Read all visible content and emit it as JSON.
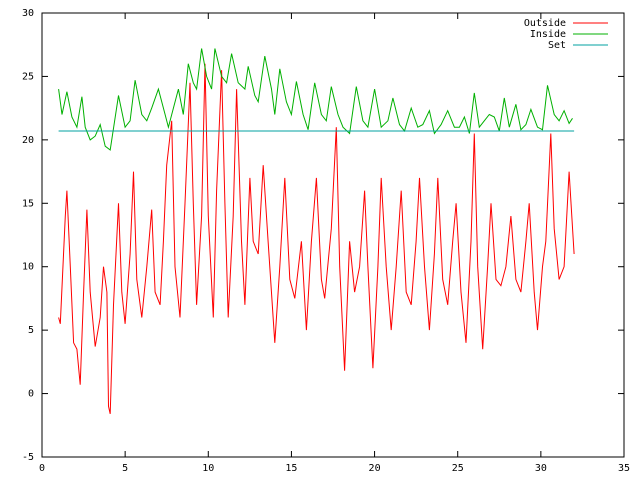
{
  "chart_data": {
    "type": "line",
    "xlim": [
      0,
      35
    ],
    "xticks": [
      0,
      5,
      10,
      15,
      20,
      25,
      30,
      35
    ],
    "ylim": [
      -5,
      30
    ],
    "yticks": [
      -5,
      0,
      5,
      10,
      15,
      20,
      25,
      30
    ],
    "series": [
      {
        "name": "Outside",
        "color": "#ff0000",
        "x": [
          1.0,
          1.1,
          1.4,
          1.5,
          1.7,
          1.9,
          2.1,
          2.3,
          2.5,
          2.7,
          2.9,
          3.2,
          3.5,
          3.7,
          3.9,
          4.0,
          4.1,
          4.3,
          4.6,
          4.8,
          5.0,
          5.3,
          5.5,
          5.7,
          6.0,
          6.3,
          6.6,
          6.8,
          7.1,
          7.3,
          7.5,
          7.8,
          8.0,
          8.3,
          8.6,
          8.9,
          9.1,
          9.3,
          9.6,
          9.8,
          10.0,
          10.3,
          10.5,
          10.8,
          11.0,
          11.2,
          11.5,
          11.7,
          12.0,
          12.2,
          12.5,
          12.7,
          13.0,
          13.3,
          13.6,
          14.0,
          14.3,
          14.6,
          14.9,
          15.2,
          15.6,
          15.9,
          16.2,
          16.5,
          16.8,
          17.0,
          17.4,
          17.7,
          17.9,
          18.2,
          18.5,
          18.8,
          19.1,
          19.4,
          19.6,
          19.9,
          20.2,
          20.4,
          20.7,
          21.0,
          21.3,
          21.6,
          21.9,
          22.2,
          22.5,
          22.7,
          23.0,
          23.3,
          23.6,
          23.8,
          24.1,
          24.4,
          24.7,
          24.9,
          25.2,
          25.5,
          25.8,
          26.0,
          26.2,
          26.5,
          26.8,
          27.0,
          27.3,
          27.6,
          27.9,
          28.2,
          28.5,
          28.8,
          29.1,
          29.3,
          29.6,
          29.8,
          30.1,
          30.3,
          30.6,
          30.8,
          31.1,
          31.4,
          31.7,
          32.0
        ],
        "values": [
          6,
          5.5,
          14,
          16,
          10,
          4,
          3.5,
          0.7,
          8,
          14.5,
          8,
          3.7,
          6,
          10,
          8,
          -1,
          -1.6,
          7,
          15,
          8,
          5.5,
          11,
          17.5,
          9,
          6,
          10,
          14.5,
          8,
          7,
          12,
          18,
          21.5,
          10,
          6,
          15,
          24.5,
          15,
          7,
          14,
          26,
          14,
          6,
          16,
          25.5,
          15,
          6,
          14,
          24,
          12,
          7,
          17,
          12,
          11,
          18,
          12,
          4,
          10,
          17,
          9,
          7.5,
          12,
          5,
          12,
          17,
          9,
          7.5,
          13,
          21,
          10,
          1.8,
          12,
          8,
          10,
          16,
          10,
          2,
          10,
          17,
          10,
          5,
          10,
          16,
          8,
          7,
          12,
          17,
          10,
          5,
          11,
          17,
          9,
          7,
          12,
          15,
          8,
          4,
          12,
          20.5,
          10,
          3.5,
          10,
          15,
          9,
          8.5,
          10,
          14,
          9,
          8,
          12,
          15,
          8,
          5,
          10,
          12,
          20.5,
          13,
          9,
          10,
          17.5,
          11
        ]
      },
      {
        "name": "Inside",
        "color": "#00b000",
        "x": [
          1.0,
          1.2,
          1.5,
          1.8,
          2.1,
          2.4,
          2.6,
          2.9,
          3.2,
          3.5,
          3.8,
          4.1,
          4.6,
          5.0,
          5.3,
          5.6,
          6.0,
          6.3,
          6.6,
          7.0,
          7.4,
          7.6,
          7.9,
          8.2,
          8.5,
          8.8,
          9.1,
          9.3,
          9.6,
          9.9,
          10.2,
          10.4,
          10.8,
          11.1,
          11.4,
          11.8,
          12.2,
          12.4,
          12.8,
          13.0,
          13.4,
          13.8,
          14.0,
          14.3,
          14.7,
          15.0,
          15.3,
          15.7,
          16.0,
          16.4,
          16.8,
          17.1,
          17.4,
          17.8,
          18.1,
          18.5,
          18.9,
          19.3,
          19.6,
          20.0,
          20.4,
          20.8,
          21.1,
          21.5,
          21.8,
          22.2,
          22.6,
          22.9,
          23.3,
          23.6,
          24.0,
          24.4,
          24.8,
          25.1,
          25.4,
          25.7,
          26.0,
          26.3,
          26.6,
          26.9,
          27.2,
          27.5,
          27.8,
          28.1,
          28.5,
          28.8,
          29.1,
          29.4,
          29.8,
          30.1,
          30.4,
          30.8,
          31.1,
          31.4,
          31.7,
          31.9
        ],
        "values": [
          24,
          22,
          23.8,
          21.8,
          21,
          23.4,
          21,
          20,
          20.3,
          21.2,
          19.5,
          19.2,
          23.5,
          21,
          21.5,
          24.7,
          22,
          21.5,
          22.5,
          24,
          22,
          21,
          22.5,
          24,
          22,
          26,
          24.5,
          24,
          27.2,
          25,
          24,
          27.2,
          25,
          24.5,
          26.8,
          24.5,
          24,
          25.8,
          23.5,
          23,
          26.6,
          24,
          22,
          25.6,
          23,
          22,
          24.6,
          22,
          20.8,
          24.5,
          22,
          21.5,
          24.2,
          22,
          21,
          20.5,
          24.2,
          21.5,
          21,
          24,
          21,
          21.5,
          23.3,
          21.2,
          20.7,
          22.5,
          21,
          21.2,
          22.3,
          20.5,
          21.2,
          22.3,
          21,
          21,
          21.8,
          20.5,
          23.7,
          21,
          21.5,
          22,
          21.8,
          20.7,
          23.3,
          21,
          22.8,
          20.8,
          21.2,
          22.4,
          21,
          20.8,
          24.3,
          22,
          21.5,
          22.3,
          21.3,
          21.7
        ]
      },
      {
        "name": "Set",
        "color": "#00a0a0",
        "x": [
          1.0,
          32.0
        ],
        "values": [
          20.7,
          20.7
        ]
      }
    ]
  }
}
